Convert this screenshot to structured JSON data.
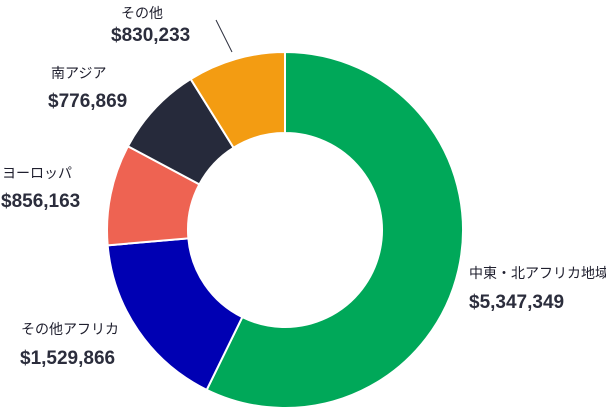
{
  "chart_data": {
    "type": "pie",
    "variant": "donut",
    "title": "",
    "slices": [
      {
        "label": "中東・北アフリカ地域",
        "display_value": "$5,347,349",
        "value": 5347349,
        "color": "#00a859"
      },
      {
        "label": "その他アフリカ",
        "display_value": "$1,529,866",
        "value": 1529866,
        "color": "#0000b3"
      },
      {
        "label": "ヨーロッパ",
        "display_value": "$856,163",
        "value": 856163,
        "color": "#ee6352"
      },
      {
        "label": "南アジア",
        "display_value": "$776,869",
        "value": 776869,
        "color": "#262a3b"
      },
      {
        "label": "その他",
        "display_value": "$830,233",
        "value": 830233,
        "color": "#f39c12"
      }
    ]
  }
}
